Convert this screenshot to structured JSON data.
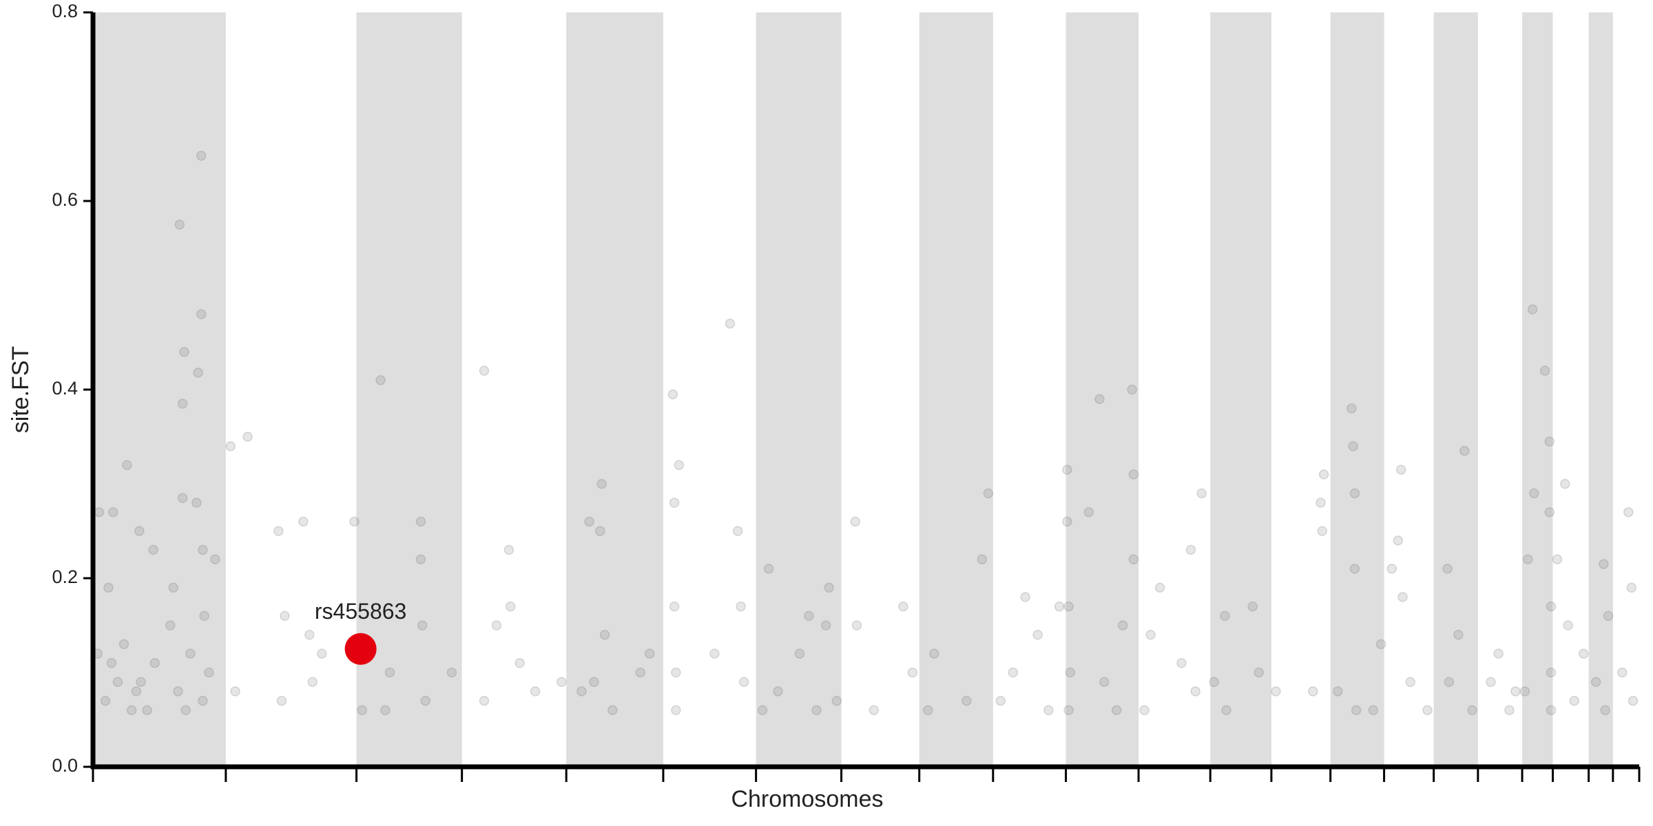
{
  "chart_data": {
    "type": "scatter",
    "x_label": "Chromosomes",
    "y_label": "site.FST",
    "xlim": [
      0,
      100
    ],
    "ylim": [
      0,
      0.8
    ],
    "xticks": [
      0,
      8.59,
      17.04,
      23.86,
      30.61,
      36.88,
      42.88,
      48.4,
      53.44,
      58.21,
      62.92,
      67.62,
      72.26,
      76.21,
      80.03,
      83.5,
      86.71,
      89.57,
      92.43,
      94.41,
      96.73,
      98.3,
      100
    ],
    "yticks": [
      {
        "value": 0,
        "label": "0.0"
      },
      0.2,
      0.4,
      0.6,
      0.8
    ],
    "color": "#555555",
    "highlight": {
      "label": "rs455863",
      "x": 17.31,
      "y": 0.125,
      "color": "#e3000f"
    },
    "x": [
      0.3,
      0.4,
      0.8,
      1.0,
      1.2,
      1.3,
      1.6,
      2.0,
      2.2,
      2.5,
      2.8,
      3.0,
      3.1,
      3.5,
      3.9,
      4.0,
      5.0,
      5.2,
      5.5,
      5.6,
      5.8,
      5.8,
      5.9,
      6.0,
      6.3,
      6.7,
      6.8,
      7.0,
      7.0,
      7.1,
      7.1,
      7.2,
      7.5,
      7.9,
      8.9,
      9.2,
      10.0,
      12.0,
      12.2,
      12.4,
      13.6,
      14.0,
      14.2,
      14.8,
      16.9,
      17.4,
      18.6,
      18.9,
      19.2,
      21.2,
      21.2,
      21.3,
      21.5,
      23.2,
      25.3,
      25.3,
      26.1,
      26.9,
      27.0,
      27.6,
      28.6,
      30.3,
      31.6,
      32.1,
      32.4,
      32.8,
      32.9,
      33.1,
      33.6,
      35.4,
      36.0,
      37.5,
      37.6,
      37.6,
      37.7,
      37.7,
      37.9,
      40.2,
      41.2,
      41.7,
      41.9,
      42.1,
      43.3,
      43.7,
      44.3,
      45.7,
      46.3,
      46.8,
      47.4,
      47.6,
      48.1,
      49.3,
      49.4,
      50.5,
      52.4,
      53.0,
      54.0,
      54.4,
      56.5,
      57.5,
      57.9,
      58.7,
      59.5,
      60.3,
      61.1,
      61.8,
      62.5,
      63.0,
      63.0,
      63.1,
      63.1,
      63.2,
      64.4,
      65.1,
      65.4,
      66.2,
      66.6,
      67.2,
      67.3,
      67.3,
      68.0,
      68.4,
      69.0,
      70.4,
      71.0,
      71.3,
      71.7,
      72.5,
      73.2,
      73.3,
      75.0,
      75.4,
      76.5,
      78.9,
      79.4,
      79.5,
      79.6,
      80.5,
      81.4,
      81.5,
      81.6,
      81.6,
      81.7,
      82.8,
      83.3,
      84.0,
      84.4,
      84.6,
      84.7,
      85.2,
      86.3,
      87.6,
      87.7,
      88.3,
      88.7,
      89.2,
      90.4,
      90.9,
      91.6,
      92.0,
      92.6,
      92.8,
      93.1,
      93.2,
      93.9,
      94.2,
      94.2,
      94.3,
      94.3,
      94.3,
      94.7,
      95.2,
      95.4,
      95.8,
      96.4,
      97.2,
      97.7,
      97.8,
      98.0,
      98.9,
      99.3,
      99.5,
      99.6
    ],
    "values": [
      0.12,
      0.27,
      0.07,
      0.19,
      0.11,
      0.27,
      0.09,
      0.13,
      0.32,
      0.06,
      0.08,
      0.25,
      0.09,
      0.06,
      0.23,
      0.11,
      0.15,
      0.19,
      0.08,
      0.575,
      0.385,
      0.285,
      0.44,
      0.06,
      0.12,
      0.28,
      0.418,
      0.648,
      0.48,
      0.23,
      0.07,
      0.16,
      0.1,
      0.22,
      0.34,
      0.08,
      0.35,
      0.25,
      0.07,
      0.16,
      0.26,
      0.14,
      0.09,
      0.12,
      0.26,
      0.06,
      0.41,
      0.06,
      0.1,
      0.26,
      0.22,
      0.15,
      0.07,
      0.1,
      0.42,
      0.07,
      0.15,
      0.23,
      0.17,
      0.11,
      0.08,
      0.09,
      0.08,
      0.26,
      0.09,
      0.25,
      0.3,
      0.14,
      0.06,
      0.1,
      0.12,
      0.395,
      0.28,
      0.17,
      0.1,
      0.06,
      0.32,
      0.12,
      0.47,
      0.25,
      0.17,
      0.09,
      0.06,
      0.21,
      0.08,
      0.12,
      0.16,
      0.06,
      0.15,
      0.19,
      0.07,
      0.26,
      0.15,
      0.06,
      0.17,
      0.1,
      0.06,
      0.12,
      0.07,
      0.22,
      0.29,
      0.07,
      0.1,
      0.18,
      0.14,
      0.06,
      0.17,
      0.315,
      0.26,
      0.17,
      0.06,
      0.1,
      0.27,
      0.39,
      0.09,
      0.06,
      0.15,
      0.4,
      0.31,
      0.22,
      0.06,
      0.14,
      0.19,
      0.11,
      0.23,
      0.08,
      0.29,
      0.09,
      0.16,
      0.06,
      0.17,
      0.1,
      0.08,
      0.08,
      0.28,
      0.25,
      0.31,
      0.08,
      0.38,
      0.34,
      0.29,
      0.21,
      0.06,
      0.06,
      0.13,
      0.21,
      0.24,
      0.315,
      0.18,
      0.09,
      0.06,
      0.21,
      0.09,
      0.14,
      0.335,
      0.06,
      0.09,
      0.12,
      0.06,
      0.08,
      0.08,
      0.22,
      0.485,
      0.29,
      0.42,
      0.345,
      0.27,
      0.17,
      0.06,
      0.1,
      0.22,
      0.3,
      0.15,
      0.07,
      0.12,
      0.09,
      0.215,
      0.06,
      0.16,
      0.1,
      0.27,
      0.19,
      0.07
    ]
  }
}
